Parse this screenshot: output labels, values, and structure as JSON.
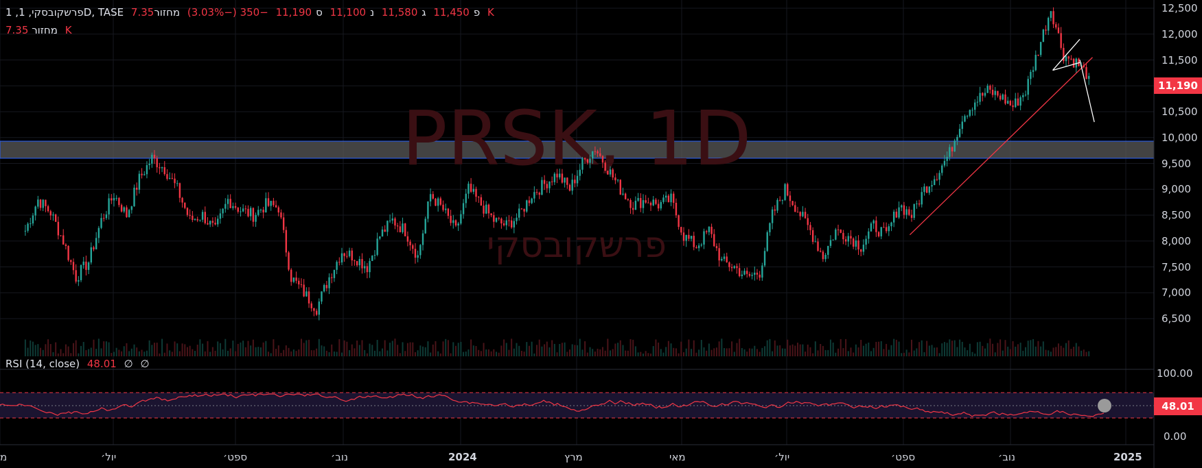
{
  "header": {
    "symbol_line": "1 ,פרשקובסקי, 1D, TASE",
    "open_label": "פ",
    "open_value": "11,450",
    "high_label": "ג",
    "high_value": "11,580",
    "low_label": "נ",
    "low_value": "11,100",
    "close_label": "ס",
    "close_value": "11,190",
    "change": "−350 (−3.03%)",
    "volume_label": "מחזור",
    "volume_value": "7.35 K"
  },
  "volume_legend": {
    "label": "מחזור",
    "value": "7.35 K"
  },
  "watermark": {
    "ticker": "PRSK, 1D",
    "name": "פרשקובסקי"
  },
  "price_axis": {
    "ticks": [
      "12,500",
      "12,000",
      "11,500",
      "11,000",
      "10,500",
      "10,000",
      "9,500",
      "9,000",
      "8,500",
      "8,000",
      "7,500",
      "7,000",
      "6,500"
    ],
    "tick_values": [
      12500,
      12000,
      11500,
      11000,
      10500,
      10000,
      9500,
      9000,
      8500,
      8000,
      7500,
      7000,
      6500
    ],
    "last_price": "11,190"
  },
  "rsi": {
    "label": "RSI (14, close)",
    "value": "48.01",
    "extra1": "∅",
    "extra2": "∅",
    "axis_ticks": [
      "100.00",
      "0.00"
    ],
    "last_value_tag": "48.01"
  },
  "time_axis": {
    "labels": [
      "מ",
      "יול׳",
      "ספט׳",
      "נוב׳",
      "2024",
      "מרץ",
      "מאי",
      "יול׳",
      "ספט׳",
      "נוב׳",
      "2025"
    ]
  },
  "colors": {
    "up": "#26a69a",
    "down": "#f23645",
    "zone": "#5a5a5a",
    "zone_border": "#2962ff",
    "background": "#000000"
  },
  "chart_data": {
    "type": "candlestick",
    "title": "PRSK, 1D",
    "ylim": [
      6400,
      12550
    ],
    "resistance_zone": [
      9600,
      9930
    ],
    "trendline": {
      "from": [
        "2024-09-15",
        8120
      ],
      "to": [
        "2024-12-25",
        11550
      ]
    },
    "wedge": [
      [
        "2024-12-03",
        11300
      ],
      [
        "2024-12-18",
        11900
      ],
      [
        "2024-12-18",
        11450
      ]
    ],
    "projection": {
      "from": [
        "2024-12-18",
        11500
      ],
      "to": [
        "2024-12-26",
        10300
      ]
    },
    "series": [
      {
        "date": "2023-05-15",
        "close": 8200
      },
      {
        "date": "2023-05-22",
        "close": 8800
      },
      {
        "date": "2023-05-29",
        "close": 8550
      },
      {
        "date": "2023-06-05",
        "close": 8000
      },
      {
        "date": "2023-06-12",
        "close": 7300
      },
      {
        "date": "2023-06-19",
        "close": 7600
      },
      {
        "date": "2023-06-26",
        "close": 8400
      },
      {
        "date": "2023-07-03",
        "close": 8900
      },
      {
        "date": "2023-07-10",
        "close": 8500
      },
      {
        "date": "2023-07-17",
        "close": 9200
      },
      {
        "date": "2023-07-24",
        "close": 9600
      },
      {
        "date": "2023-07-31",
        "close": 9400
      },
      {
        "date": "2023-08-07",
        "close": 9000
      },
      {
        "date": "2023-08-14",
        "close": 8400
      },
      {
        "date": "2023-08-21",
        "close": 8500
      },
      {
        "date": "2023-08-28",
        "close": 8200
      },
      {
        "date": "2023-09-04",
        "close": 8800
      },
      {
        "date": "2023-09-11",
        "close": 8600
      },
      {
        "date": "2023-09-18",
        "close": 8500
      },
      {
        "date": "2023-09-25",
        "close": 8700
      },
      {
        "date": "2023-10-02",
        "close": 8650
      },
      {
        "date": "2023-10-09",
        "close": 7300
      },
      {
        "date": "2023-10-16",
        "close": 7000
      },
      {
        "date": "2023-10-23",
        "close": 6700
      },
      {
        "date": "2023-10-30",
        "close": 7300
      },
      {
        "date": "2023-11-06",
        "close": 7800
      },
      {
        "date": "2023-11-13",
        "close": 7700
      },
      {
        "date": "2023-11-20",
        "close": 7500
      },
      {
        "date": "2023-11-27",
        "close": 8100
      },
      {
        "date": "2023-12-04",
        "close": 8400
      },
      {
        "date": "2023-12-11",
        "close": 8200
      },
      {
        "date": "2023-12-18",
        "close": 7700
      },
      {
        "date": "2023-12-25",
        "close": 8900
      },
      {
        "date": "2024-01-01",
        "close": 8600
      },
      {
        "date": "2024-01-08",
        "close": 8200
      },
      {
        "date": "2024-01-15",
        "close": 9000
      },
      {
        "date": "2024-01-22",
        "close": 8700
      },
      {
        "date": "2024-01-29",
        "close": 8400
      },
      {
        "date": "2024-02-05",
        "close": 8300
      },
      {
        "date": "2024-02-12",
        "close": 8500
      },
      {
        "date": "2024-02-19",
        "close": 8900
      },
      {
        "date": "2024-02-26",
        "close": 9100
      },
      {
        "date": "2024-03-04",
        "close": 9300
      },
      {
        "date": "2024-03-11",
        "close": 9000
      },
      {
        "date": "2024-03-18",
        "close": 9500
      },
      {
        "date": "2024-03-25",
        "close": 9800
      },
      {
        "date": "2024-04-01",
        "close": 9400
      },
      {
        "date": "2024-04-08",
        "close": 9000
      },
      {
        "date": "2024-04-15",
        "close": 8700
      },
      {
        "date": "2024-04-22",
        "close": 8800
      },
      {
        "date": "2024-04-29",
        "close": 8700
      },
      {
        "date": "2024-05-06",
        "close": 8800
      },
      {
        "date": "2024-05-13",
        "close": 8100
      },
      {
        "date": "2024-05-20",
        "close": 7900
      },
      {
        "date": "2024-05-27",
        "close": 8200
      },
      {
        "date": "2024-06-03",
        "close": 7600
      },
      {
        "date": "2024-06-10",
        "close": 7500
      },
      {
        "date": "2024-06-17",
        "close": 7300
      },
      {
        "date": "2024-06-24",
        "close": 7400
      },
      {
        "date": "2024-07-01",
        "close": 8500
      },
      {
        "date": "2024-07-08",
        "close": 9000
      },
      {
        "date": "2024-07-15",
        "close": 8600
      },
      {
        "date": "2024-07-22",
        "close": 8200
      },
      {
        "date": "2024-07-29",
        "close": 7700
      },
      {
        "date": "2024-08-05",
        "close": 8200
      },
      {
        "date": "2024-08-12",
        "close": 8100
      },
      {
        "date": "2024-08-19",
        "close": 7900
      },
      {
        "date": "2024-08-26",
        "close": 8300
      },
      {
        "date": "2024-09-02",
        "close": 8100
      },
      {
        "date": "2024-09-09",
        "close": 8700
      },
      {
        "date": "2024-09-16",
        "close": 8500
      },
      {
        "date": "2024-09-23",
        "close": 9000
      },
      {
        "date": "2024-09-30",
        "close": 9300
      },
      {
        "date": "2024-10-07",
        "close": 9700
      },
      {
        "date": "2024-10-14",
        "close": 10400
      },
      {
        "date": "2024-10-21",
        "close": 10700
      },
      {
        "date": "2024-10-28",
        "close": 10900
      },
      {
        "date": "2024-11-04",
        "close": 10800
      },
      {
        "date": "2024-11-11",
        "close": 10600
      },
      {
        "date": "2024-11-18",
        "close": 10900
      },
      {
        "date": "2024-11-25",
        "close": 11700
      },
      {
        "date": "2024-12-02",
        "close": 12500
      },
      {
        "date": "2024-12-09",
        "close": 11600
      },
      {
        "date": "2024-12-16",
        "close": 11450
      },
      {
        "date": "2024-12-23",
        "close": 11190
      }
    ]
  }
}
